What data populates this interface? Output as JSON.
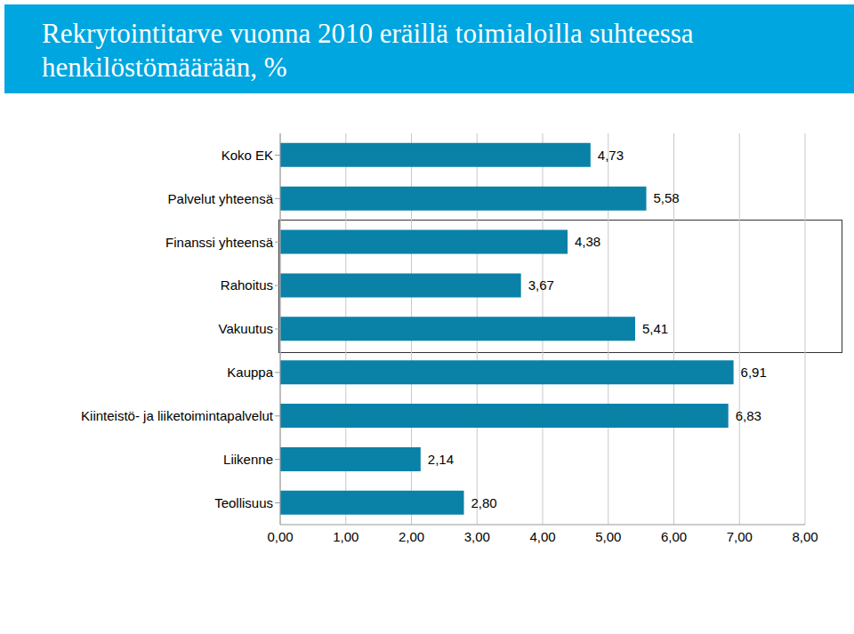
{
  "chart_data": {
    "type": "bar",
    "title": "Rekrytointitarve vuonna 2010 eräillä toimialoilla suhteessa henkilöstömäärään, %",
    "orientation": "horizontal",
    "categories": [
      "Koko EK",
      "Palvelut yhteensä",
      "Finanssi yhteensä",
      "Rahoitus",
      "Vakuutus",
      "Kauppa",
      "Kiinteistö- ja liiketoimintapalvelut",
      "Liikenne",
      "Teollisuus"
    ],
    "values": [
      4.73,
      5.58,
      4.38,
      3.67,
      5.41,
      6.91,
      6.83,
      2.14,
      2.8
    ],
    "value_labels": [
      "4,73",
      "5,58",
      "4,38",
      "3,67",
      "5,41",
      "6,91",
      "6,83",
      "2,14",
      "2,80"
    ],
    "color": "#0a82a8",
    "xlim": [
      0,
      8
    ],
    "xticks": [
      {
        "value": 0,
        "label": "0,00"
      },
      {
        "value": 1,
        "label": "1,00"
      },
      {
        "value": 2,
        "label": "2,00"
      },
      {
        "value": 3,
        "label": "3,00"
      },
      {
        "value": 4,
        "label": "4,00"
      },
      {
        "value": 5,
        "label": "5,00"
      },
      {
        "value": 6,
        "label": "6,00"
      },
      {
        "value": 7,
        "label": "7,00"
      },
      {
        "value": 8,
        "label": "8,00"
      }
    ],
    "grid": true,
    "data_labels": true
  }
}
